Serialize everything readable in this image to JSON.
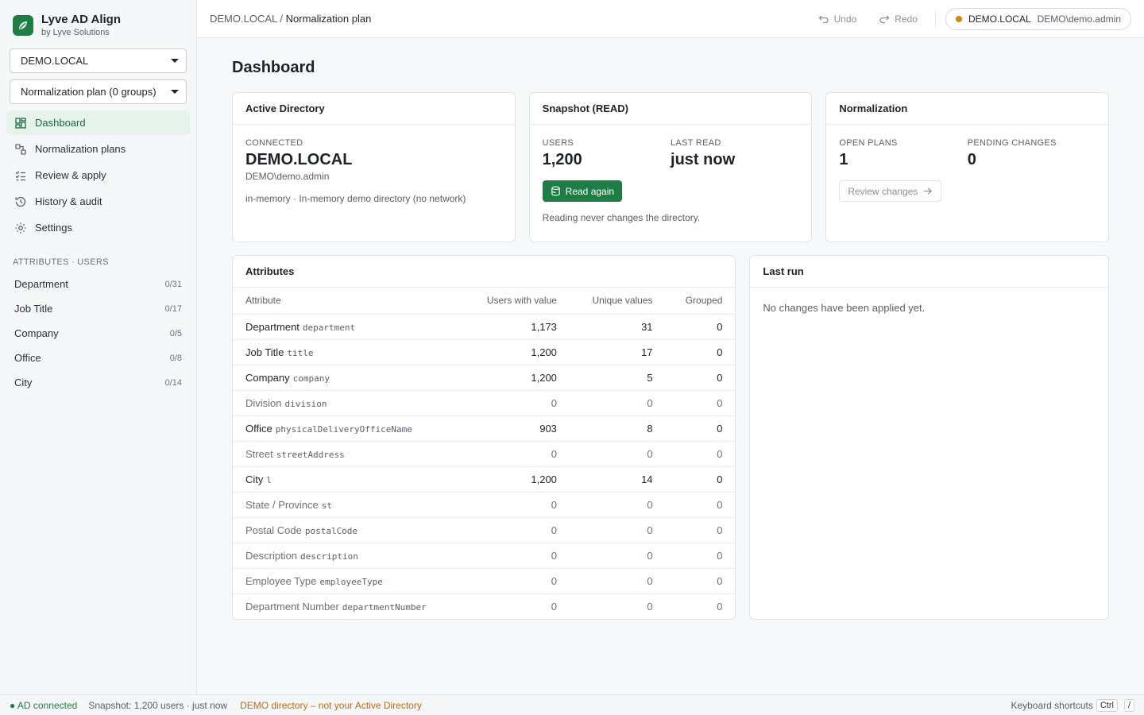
{
  "app": {
    "name": "Lyve AD Align",
    "vendor": "by Lyve Solutions"
  },
  "sidebar": {
    "domain_select": "DEMO.LOCAL",
    "plan_select": "Normalization plan (0 groups)",
    "nav": [
      {
        "label": "Dashboard",
        "icon": "dashboard-icon",
        "active": true
      },
      {
        "label": "Normalization plans",
        "icon": "plans-icon"
      },
      {
        "label": "Review & apply",
        "icon": "checklist-icon"
      },
      {
        "label": "History & audit",
        "icon": "history-icon"
      },
      {
        "label": "Settings",
        "icon": "gear-icon"
      }
    ],
    "section_title": "ATTRIBUTES · USERS",
    "attributes": [
      {
        "label": "Department",
        "count": "0/31"
      },
      {
        "label": "Job Title",
        "count": "0/17"
      },
      {
        "label": "Company",
        "count": "0/5"
      },
      {
        "label": "Office",
        "count": "0/8"
      },
      {
        "label": "City",
        "count": "0/14"
      }
    ]
  },
  "topbar": {
    "breadcrumb_root": "DEMO.LOCAL",
    "breadcrumb_sep": "/",
    "breadcrumb_current": "Normalization plan",
    "undo": "Undo",
    "redo": "Redo",
    "domain": "DEMO.LOCAL",
    "user": "DEMO\\demo.admin",
    "status_color": "#c98a0e"
  },
  "page": {
    "title": "Dashboard"
  },
  "ad_card": {
    "title": "Active Directory",
    "label": "CONNECTED",
    "domain": "DEMO.LOCAL",
    "user": "DEMO\\demo.admin",
    "mode": "in-memory · In-memory demo directory (no network)"
  },
  "snapshot_card": {
    "title": "Snapshot (READ)",
    "users_label": "USERS",
    "users_value": "1,200",
    "last_read_label": "LAST READ",
    "last_read_value": "just now",
    "button": "Read again",
    "note": "Reading never changes the directory."
  },
  "normalization_card": {
    "title": "Normalization",
    "open_plans_label": "OPEN PLANS",
    "open_plans_value": "1",
    "pending_label": "PENDING CHANGES",
    "pending_value": "0",
    "button": "Review changes"
  },
  "attributes_table": {
    "title": "Attributes",
    "columns": [
      "Attribute",
      "Users with value",
      "Unique values",
      "Grouped"
    ],
    "rows": [
      {
        "name": "Department",
        "field": "department",
        "users": "1,173",
        "unique": "31",
        "grouped": "0",
        "dim": false
      },
      {
        "name": "Job Title",
        "field": "title",
        "users": "1,200",
        "unique": "17",
        "grouped": "0",
        "dim": false
      },
      {
        "name": "Company",
        "field": "company",
        "users": "1,200",
        "unique": "5",
        "grouped": "0",
        "dim": false
      },
      {
        "name": "Division",
        "field": "division",
        "users": "0",
        "unique": "0",
        "grouped": "0",
        "dim": true
      },
      {
        "name": "Office",
        "field": "physicalDeliveryOfficeName",
        "users": "903",
        "unique": "8",
        "grouped": "0",
        "dim": false
      },
      {
        "name": "Street",
        "field": "streetAddress",
        "users": "0",
        "unique": "0",
        "grouped": "0",
        "dim": true
      },
      {
        "name": "City",
        "field": "l",
        "users": "1,200",
        "unique": "14",
        "grouped": "0",
        "dim": false
      },
      {
        "name": "State / Province",
        "field": "st",
        "users": "0",
        "unique": "0",
        "grouped": "0",
        "dim": true
      },
      {
        "name": "Postal Code",
        "field": "postalCode",
        "users": "0",
        "unique": "0",
        "grouped": "0",
        "dim": true
      },
      {
        "name": "Description",
        "field": "description",
        "users": "0",
        "unique": "0",
        "grouped": "0",
        "dim": true
      },
      {
        "name": "Employee Type",
        "field": "employeeType",
        "users": "0",
        "unique": "0",
        "grouped": "0",
        "dim": true
      },
      {
        "name": "Department Number",
        "field": "departmentNumber",
        "users": "0",
        "unique": "0",
        "grouped": "0",
        "dim": true
      }
    ]
  },
  "last_run": {
    "title": "Last run",
    "message": "No changes have been applied yet."
  },
  "statusbar": {
    "connection": "● AD connected",
    "snapshot": "Snapshot: 1,200 users · just now",
    "warning": "DEMO directory – not your Active Directory",
    "shortcuts_label": "Keyboard shortcuts",
    "key1": "Ctrl",
    "key2": "/"
  },
  "colors": {
    "accent": "#1e7d45",
    "warning": "#c06a0e"
  }
}
